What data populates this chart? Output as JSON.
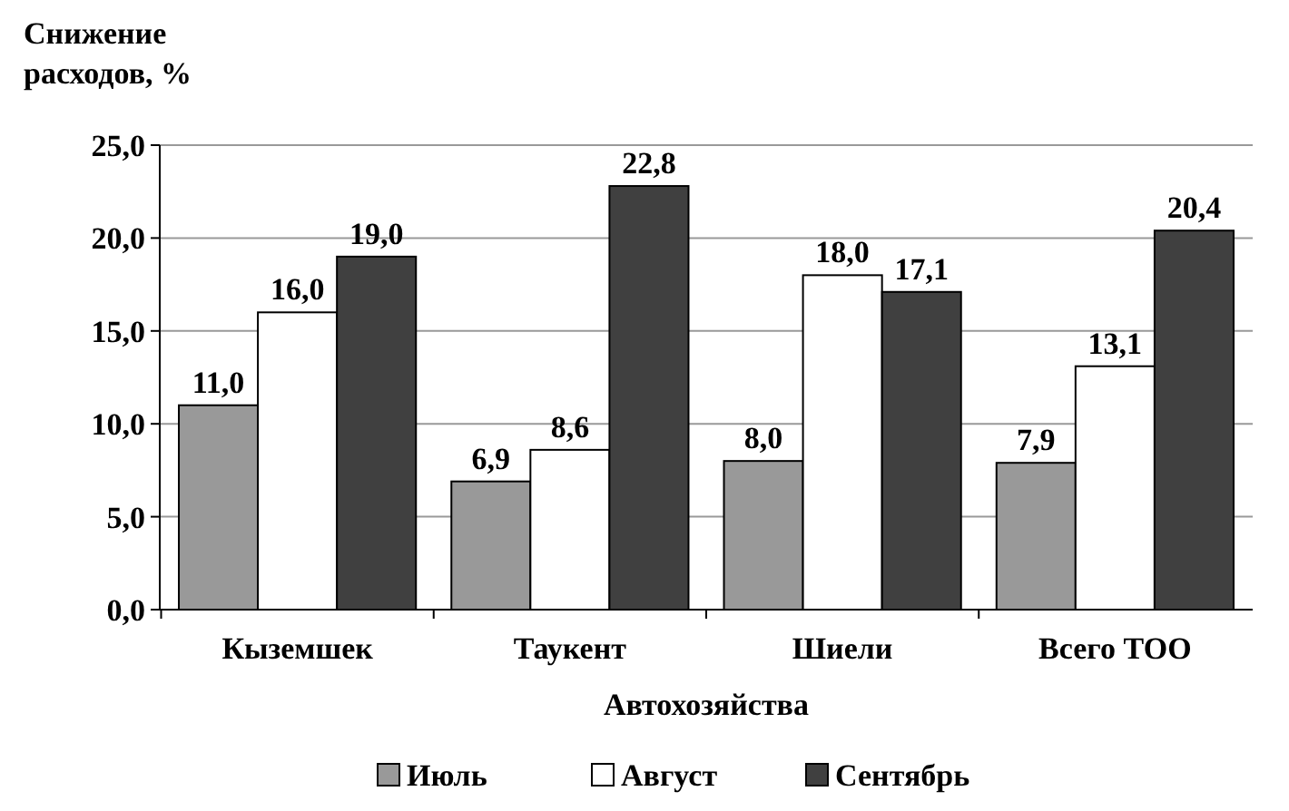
{
  "chart_data": {
    "type": "bar",
    "ylabel": "Снижение расходов, %",
    "xlabel": "Автохозяйства",
    "categories": [
      "Кыземшек",
      "Таукент",
      "Шиели",
      "Всего ТОО"
    ],
    "series": [
      {
        "name": "Июль",
        "color": "#999999",
        "values": [
          11.0,
          6.9,
          8.0,
          7.9
        ],
        "value_labels": [
          "11,0",
          "6,9",
          "8,0",
          "7,9"
        ]
      },
      {
        "name": "Август",
        "color": "#ffffff",
        "values": [
          16.0,
          8.6,
          18.0,
          13.1
        ],
        "value_labels": [
          "16,0",
          "8,6",
          "18,0",
          "13,1"
        ]
      },
      {
        "name": "Сентябрь",
        "color": "#404040",
        "values": [
          19.0,
          22.8,
          17.1,
          20.4
        ],
        "value_labels": [
          "19,0",
          "22,8",
          "17,1",
          "20,4"
        ]
      }
    ],
    "ylim": [
      0,
      25
    ],
    "yticks": [
      {
        "value": 0,
        "label": "0,0"
      },
      {
        "value": 5,
        "label": "5,0"
      },
      {
        "value": 10,
        "label": "10,0"
      },
      {
        "value": 15,
        "label": "15,0"
      },
      {
        "value": 20,
        "label": "20,0"
      },
      {
        "value": 25,
        "label": "25,0"
      }
    ],
    "grid": "y",
    "legend": "bottom"
  }
}
